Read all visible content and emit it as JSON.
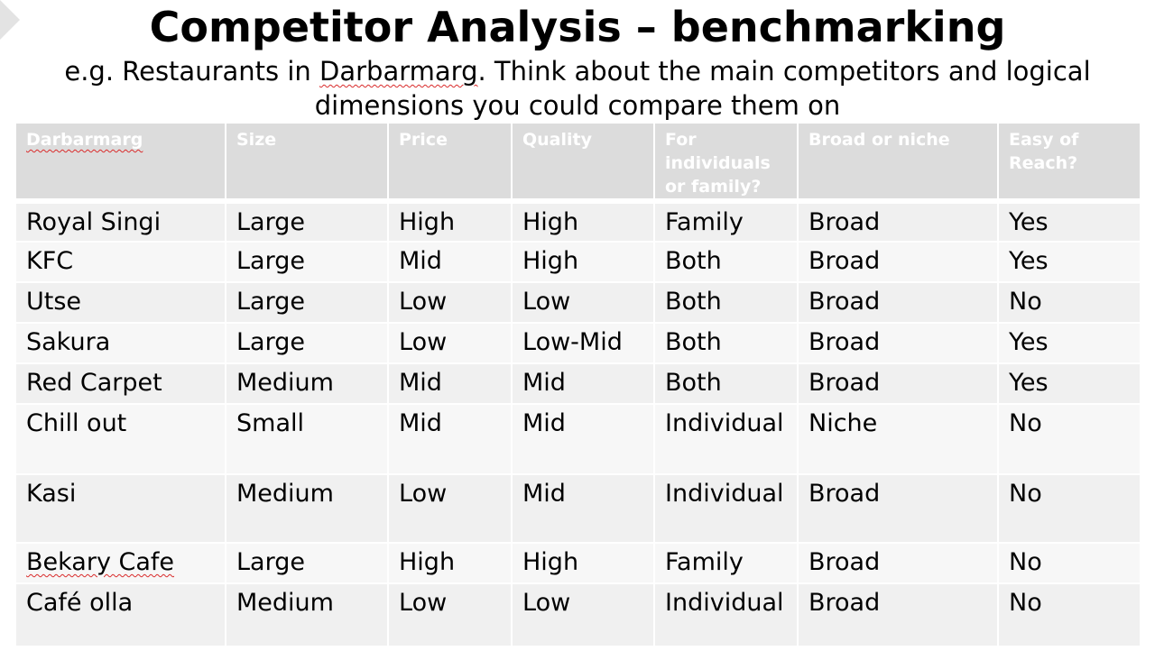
{
  "slide": {
    "title": "Competitor Analysis – benchmarking",
    "subtitle_before": "e.g. Restaurants in ",
    "subtitle_flagged": "Darbarmarg",
    "subtitle_after": ". Think about the main competitors and logical dimensions you could compare them on"
  },
  "table": {
    "headers": [
      "Darbarmarg",
      "Size",
      "Price",
      "Quality",
      "For individuals or family?",
      "Broad or niche",
      "Easy of Reach?"
    ],
    "rows": [
      [
        "Royal Singi",
        "Large",
        "High",
        "High",
        "Family",
        "Broad",
        "Yes"
      ],
      [
        "KFC",
        "Large",
        "Mid",
        "High",
        "Both",
        "Broad",
        "Yes"
      ],
      [
        "Utse",
        "Large",
        "Low",
        "Low",
        "Both",
        "Broad",
        "No"
      ],
      [
        "Sakura",
        "Large",
        "Low",
        "Low-Mid",
        "Both",
        "Broad",
        "Yes"
      ],
      [
        "Red Carpet",
        "Medium",
        "Mid",
        "Mid",
        "Both",
        "Broad",
        "Yes"
      ],
      [
        "Chill out",
        "Small",
        "Mid",
        "Mid",
        "Individual",
        "Niche",
        "No"
      ],
      [
        "Kasi",
        "Medium",
        "Low",
        "Mid",
        "Individual",
        "Broad",
        "No"
      ],
      [
        "Bekary Cafe",
        "Large",
        "High",
        "High",
        "Family",
        "Broad",
        "No"
      ],
      [
        "Café olla",
        "Medium",
        "Low",
        "Low",
        "Individual",
        "Broad",
        "No"
      ]
    ]
  },
  "colors": {
    "header_background": "#dcdcdc",
    "header_text": "#ffffff",
    "row_band_a": "#f0f0f0",
    "row_band_b": "#f7f7f7",
    "spellcheck_underline": "#d92b2b"
  }
}
